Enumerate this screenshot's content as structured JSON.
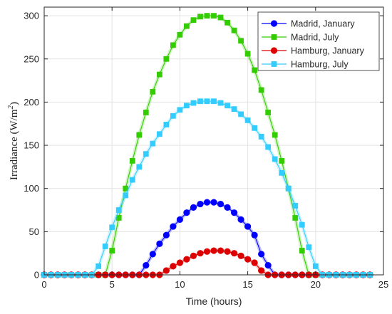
{
  "chart_data": {
    "type": "line",
    "xlabel": "Time (hours)",
    "ylabel_main": "Irradiance (W/m",
    "ylabel_sup": "2",
    "ylabel_close": ")",
    "xlim": [
      0,
      25
    ],
    "ylim": [
      0,
      310
    ],
    "xticks": [
      0,
      5,
      10,
      15,
      20,
      25
    ],
    "yticks": [
      0,
      50,
      100,
      150,
      200,
      250,
      300
    ],
    "grid": true,
    "legend_position": "top-right",
    "x": [
      0,
      0.5,
      1,
      1.5,
      2,
      2.5,
      3,
      3.5,
      4,
      4.5,
      5,
      5.5,
      6,
      6.5,
      7,
      7.5,
      8,
      8.5,
      9,
      9.5,
      10,
      10.5,
      11,
      11.5,
      12,
      12.5,
      13,
      13.5,
      14,
      14.5,
      15,
      15.5,
      16,
      16.5,
      17,
      17.5,
      18,
      18.5,
      19,
      19.5,
      20,
      20.5,
      21,
      21.5,
      22,
      22.5,
      23,
      23.5,
      24
    ],
    "series": [
      {
        "name": "Madrid, January",
        "color": "#0000ff",
        "marker": "circle",
        "values": [
          0,
          0,
          0,
          0,
          0,
          0,
          0,
          0,
          0,
          0,
          0,
          0,
          0,
          0,
          0,
          11,
          24,
          36,
          46,
          56,
          64,
          72,
          78,
          82,
          84,
          84,
          82,
          78,
          72,
          64,
          56,
          46,
          24,
          11,
          0,
          0,
          0,
          0,
          0,
          0,
          0,
          0,
          0,
          0,
          0,
          0,
          0,
          0,
          0
        ]
      },
      {
        "name": "Madrid, July",
        "color": "#33cc00",
        "marker": "square",
        "values": [
          0,
          0,
          0,
          0,
          0,
          0,
          0,
          0,
          0,
          0,
          28,
          66,
          100,
          132,
          162,
          188,
          212,
          232,
          250,
          266,
          278,
          288,
          295,
          299,
          300,
          300,
          298,
          292,
          283,
          271,
          256,
          237,
          214,
          188,
          162,
          132,
          100,
          66,
          28,
          0,
          0,
          0,
          0,
          0,
          0,
          0,
          0,
          0,
          0
        ]
      },
      {
        "name": "Hamburg, January",
        "color": "#dd0000",
        "marker": "circle",
        "values": [
          0,
          0,
          0,
          0,
          0,
          0,
          0,
          0,
          0,
          0,
          0,
          0,
          0,
          0,
          0,
          0,
          0,
          0,
          5,
          10,
          14,
          18,
          22,
          25,
          27,
          28,
          28,
          27,
          25,
          22,
          18,
          14,
          5,
          0,
          0,
          0,
          0,
          0,
          0,
          0,
          0,
          0,
          0,
          0,
          0,
          0,
          0,
          0,
          0
        ]
      },
      {
        "name": "Hamburg, July",
        "color": "#33ccff",
        "marker": "square",
        "values": [
          0,
          0,
          0,
          0,
          0,
          0,
          0,
          0,
          10,
          33,
          55,
          75,
          92,
          110,
          125,
          140,
          152,
          163,
          174,
          184,
          191,
          196,
          199,
          201,
          201,
          201,
          199,
          196,
          192,
          186,
          179,
          170,
          160,
          148,
          134,
          118,
          100,
          80,
          58,
          32,
          10,
          0,
          0,
          0,
          0,
          0,
          0,
          0,
          0
        ]
      }
    ]
  }
}
